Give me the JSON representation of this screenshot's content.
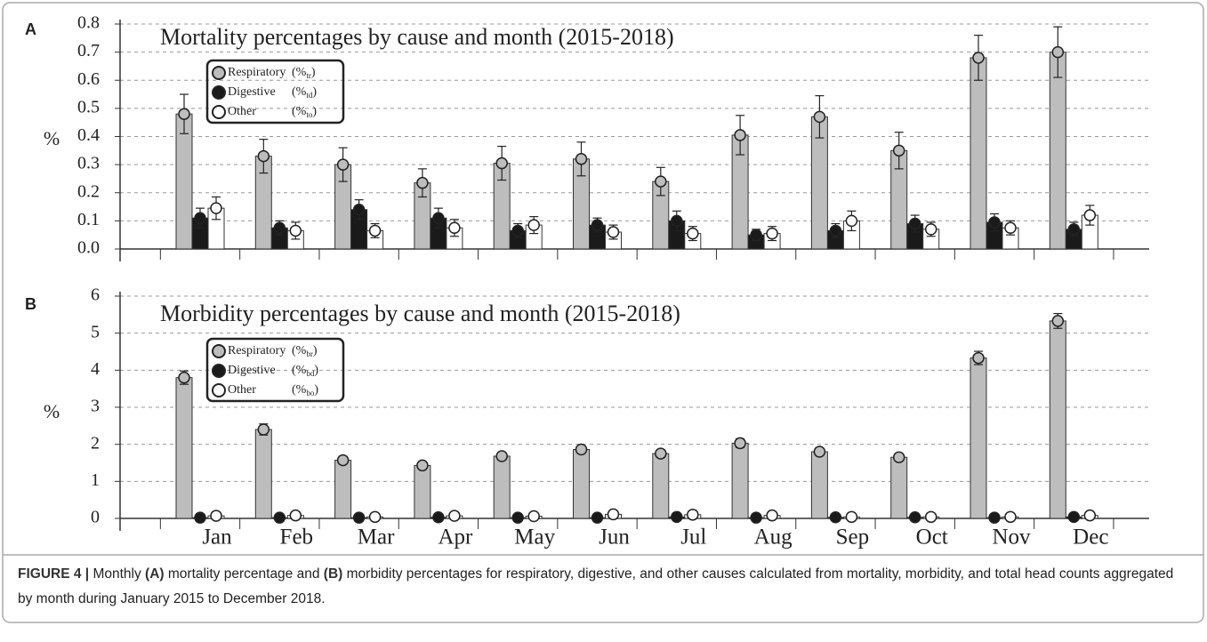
{
  "chart_data": [
    {
      "type": "bar",
      "panel": "A",
      "title": "Mortality percentages by cause and month (2015-2018)",
      "y_label": "%",
      "ylim": [
        0,
        0.8
      ],
      "yticks": [
        {
          "value": 0,
          "label": "0.0"
        },
        0.1,
        0.2,
        0.3,
        0.4,
        0.5,
        0.6,
        0.7,
        0.8
      ],
      "grid": true,
      "series": [
        {
          "name": "Respiratory",
          "unit": "(%",
          "subscript": "tr",
          "unit_close": ")",
          "color": "#bdbdbd",
          "values": [
            0.48,
            0.33,
            0.3,
            0.235,
            0.305,
            0.32,
            0.24,
            0.405,
            0.47,
            0.35,
            0.68,
            0.7
          ],
          "errors": [
            0.07,
            0.06,
            0.06,
            0.05,
            0.06,
            0.06,
            0.05,
            0.07,
            0.075,
            0.065,
            0.08,
            0.09
          ]
        },
        {
          "name": "Digestive",
          "unit": "(%",
          "subscript": "td",
          "unit_close": ")",
          "color": "#1a1a1a",
          "values": [
            0.11,
            0.075,
            0.14,
            0.11,
            0.065,
            0.085,
            0.1,
            0.05,
            0.065,
            0.09,
            0.095,
            0.07
          ],
          "errors": [
            0.035,
            0.025,
            0.035,
            0.035,
            0.025,
            0.025,
            0.035,
            0.02,
            0.025,
            0.03,
            0.03,
            0.025
          ]
        },
        {
          "name": "Other",
          "unit": "(%",
          "subscript": "to",
          "unit_close": ")",
          "color": "#ffffff",
          "values": [
            0.145,
            0.065,
            0.065,
            0.075,
            0.085,
            0.06,
            0.055,
            0.055,
            0.1,
            0.07,
            0.075,
            0.12
          ],
          "errors": [
            0.04,
            0.03,
            0.025,
            0.03,
            0.03,
            0.025,
            0.025,
            0.025,
            0.035,
            0.025,
            0.025,
            0.035
          ]
        }
      ]
    },
    {
      "type": "bar",
      "panel": "B",
      "title": "Morbidity percentages by cause and month (2015-2018)",
      "y_label": "%",
      "categories": [
        "Jan",
        "Feb",
        "Mar",
        "Apr",
        "May",
        "Jun",
        "Jul",
        "Aug",
        "Sep",
        "Oct",
        "Nov",
        "Dec"
      ],
      "ylim": [
        0,
        6
      ],
      "yticks": [
        0,
        1,
        2,
        3,
        4,
        5,
        6
      ],
      "grid": true,
      "series": [
        {
          "name": "Respiratory",
          "unit": "(%",
          "subscript": "br",
          "unit_close": ")",
          "color": "#bdbdbd",
          "values": [
            3.8,
            2.4,
            1.57,
            1.43,
            1.68,
            1.86,
            1.75,
            2.03,
            1.8,
            1.65,
            4.33,
            5.33
          ],
          "errors": [
            0.18,
            0.15,
            0.1,
            0.1,
            0.1,
            0.1,
            0.1,
            0.12,
            0.1,
            0.1,
            0.18,
            0.2
          ]
        },
        {
          "name": "Digestive",
          "unit": "(%",
          "subscript": "bd",
          "unit_close": ")",
          "color": "#1a1a1a",
          "values": [
            0.02,
            0.02,
            0.02,
            0.03,
            0.02,
            0.02,
            0.04,
            0.02,
            0.03,
            0.03,
            0.02,
            0.04
          ],
          "errors": [
            0.02,
            0.02,
            0.02,
            0.02,
            0.02,
            0.02,
            0.02,
            0.02,
            0.02,
            0.02,
            0.02,
            0.02
          ]
        },
        {
          "name": "Other",
          "unit": "(%",
          "subscript": "bo",
          "unit_close": ")",
          "color": "#ffffff",
          "values": [
            0.07,
            0.08,
            0.04,
            0.07,
            0.06,
            0.11,
            0.1,
            0.08,
            0.04,
            0.04,
            0.04,
            0.08
          ],
          "errors": [
            0.02,
            0.02,
            0.02,
            0.02,
            0.02,
            0.02,
            0.02,
            0.02,
            0.02,
            0.02,
            0.02,
            0.02
          ]
        }
      ]
    }
  ],
  "caption": [
    {
      "text": "FIGURE 4 |",
      "bold": true
    },
    {
      "text": " Monthly ",
      "bold": false
    },
    {
      "text": "(A)",
      "bold": true
    },
    {
      "text": " mortality percentage and ",
      "bold": false
    },
    {
      "text": "(B)",
      "bold": true
    },
    {
      "text": " morbidity percentages for respiratory, digestive, and other causes calculated from mortality, morbidity, and total head counts aggregated by month during January 2015 to December 2018.",
      "bold": false
    }
  ]
}
